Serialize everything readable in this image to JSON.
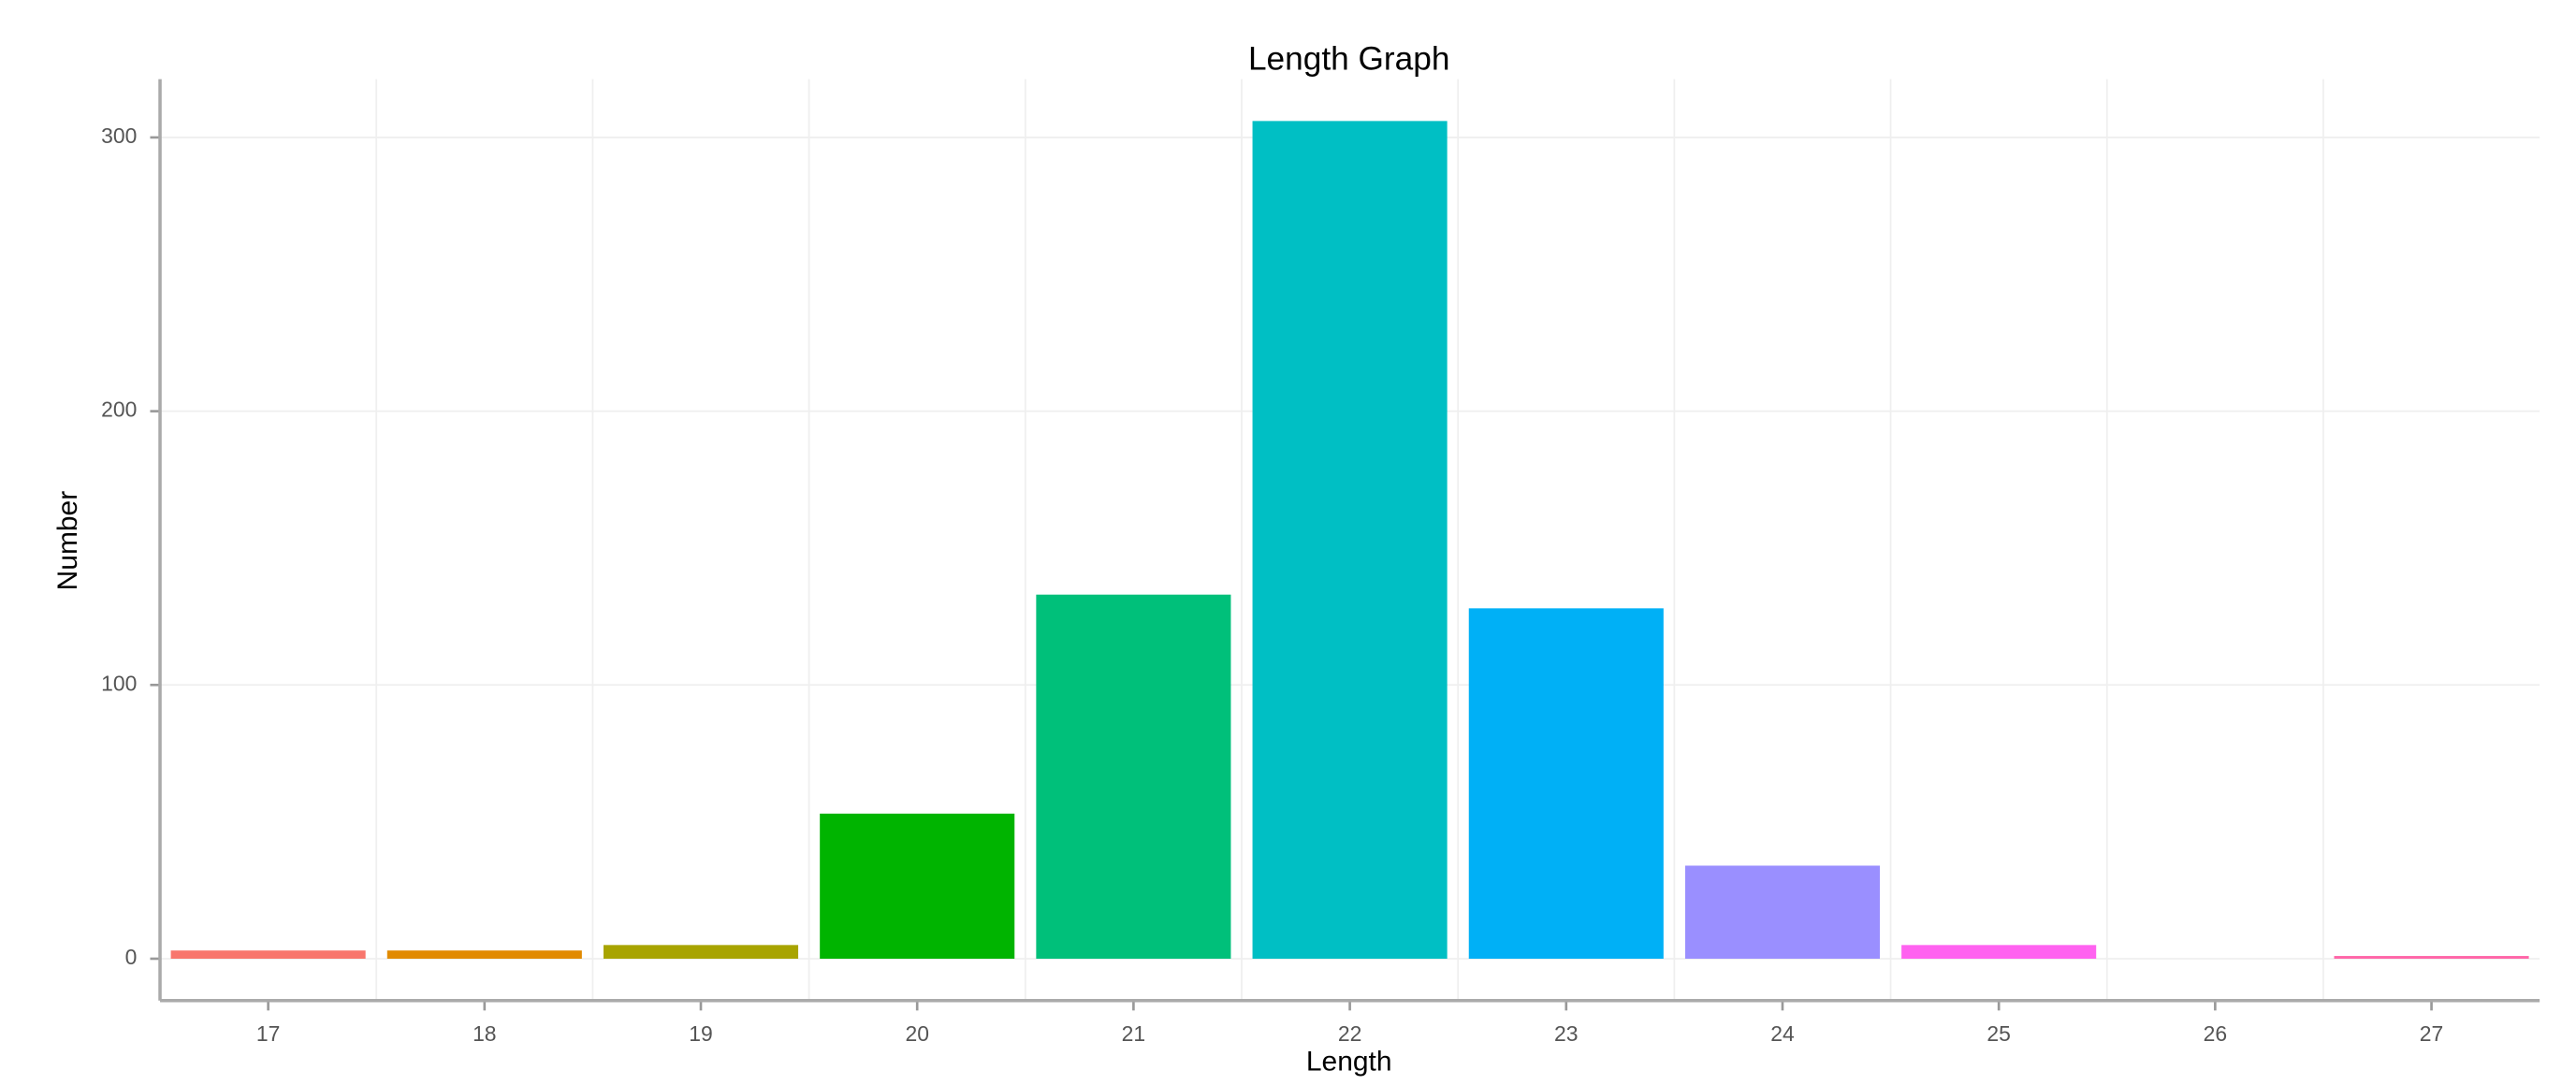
{
  "chart_data": {
    "type": "bar",
    "title": "Length Graph",
    "x_label": "Length",
    "y_label": "Number",
    "categories": [
      "17",
      "18",
      "19",
      "20",
      "21",
      "22",
      "23",
      "24",
      "25",
      "26",
      "27"
    ],
    "values": [
      3,
      3,
      5,
      53,
      133,
      306,
      128,
      34,
      5,
      0,
      1
    ],
    "colors": [
      "#F8766D",
      "#E18A00",
      "#A8A400",
      "#00B400",
      "#00C07A",
      "#00BFC4",
      "#00B0F6",
      "#9A8FFF",
      "#FF62F0",
      "#F066EA",
      "#FF66A8"
    ],
    "ylim": [
      -15.3,
      321.3
    ],
    "yticks": [
      0,
      100,
      200,
      300
    ],
    "grid": true
  }
}
